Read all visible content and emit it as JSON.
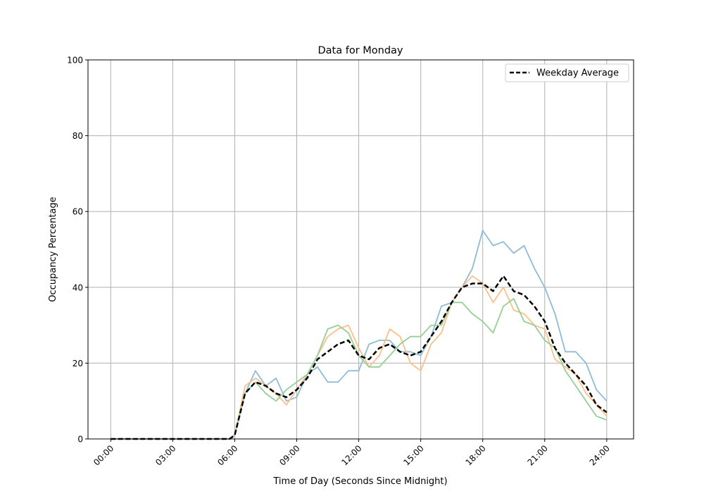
{
  "chart_data": {
    "type": "line",
    "title": "Data for Monday",
    "xlabel": "Time of Day (Seconds Since Midnight)",
    "ylabel": "Occupancy Percentage",
    "xlim": [
      -1.1,
      25.3
    ],
    "ylim": [
      0,
      100
    ],
    "grid": true,
    "legend_placement": "top-right",
    "x_ticks": [
      0,
      3,
      6,
      9,
      12,
      15,
      18,
      21,
      24
    ],
    "x_tick_labels": [
      "00:00",
      "03:00",
      "06:00",
      "09:00",
      "12:00",
      "15:00",
      "18:00",
      "21:00",
      "24:00"
    ],
    "y_ticks": [
      0,
      20,
      40,
      60,
      80,
      100
    ],
    "y_tick_labels": [
      "0",
      "20",
      "40",
      "60",
      "80",
      "100"
    ],
    "x_hours": [
      0,
      0.5,
      1,
      1.5,
      2,
      2.5,
      3,
      3.5,
      4,
      4.5,
      5,
      5.5,
      5.75,
      6,
      6.5,
      7,
      7.5,
      8,
      8.5,
      9,
      9.5,
      10,
      10.5,
      11,
      11.5,
      12,
      12.5,
      13,
      13.5,
      14,
      14.5,
      15,
      15.5,
      16,
      16.5,
      17,
      17.5,
      18,
      18.5,
      19,
      19.5,
      20,
      20.5,
      21,
      21.5,
      22,
      22.5,
      23,
      23.5,
      24
    ],
    "series": [
      {
        "color": "#8fbbd9",
        "style": "solid",
        "values": [
          0,
          0,
          0,
          0,
          0,
          0,
          0,
          0,
          0,
          0,
          0,
          0,
          0,
          1,
          12,
          18,
          14,
          16,
          10,
          11,
          17,
          19,
          15,
          15,
          18,
          18,
          25,
          26,
          26,
          23,
          23,
          22,
          27,
          35,
          36,
          40,
          45,
          55,
          51,
          52,
          49,
          51,
          45,
          40,
          33,
          23,
          23,
          20,
          13,
          10
        ]
      },
      {
        "color": "#ffbf86",
        "style": "solid",
        "values": [
          0,
          0,
          0,
          0,
          0,
          0,
          0,
          0,
          0,
          0,
          0,
          0,
          0,
          1,
          14,
          16,
          14,
          12,
          9,
          13,
          17,
          22,
          27,
          29,
          30,
          24,
          19,
          22,
          29,
          27,
          20,
          18,
          25,
          28,
          36,
          40,
          43,
          41,
          36,
          40,
          34,
          33,
          30,
          29,
          21,
          19,
          17,
          12,
          9,
          6
        ]
      },
      {
        "color": "#95cf95",
        "style": "solid",
        "values": [
          0,
          0,
          0,
          0,
          0,
          0,
          0,
          0,
          0,
          0,
          0,
          0,
          0,
          1,
          12,
          15,
          12,
          10,
          13,
          15,
          17,
          22,
          29,
          30,
          28,
          22,
          19,
          19,
          22,
          25,
          27,
          27,
          30,
          30,
          36,
          36,
          33,
          31,
          28,
          35,
          37,
          31,
          30,
          26,
          24,
          18,
          14,
          10,
          6,
          5
        ]
      },
      {
        "name": "Weekday Average",
        "color": "#000000",
        "style": "dashed",
        "values": [
          0,
          0,
          0,
          0,
          0,
          0,
          0,
          0,
          0,
          0,
          0,
          0,
          0,
          1,
          12,
          15,
          14,
          12,
          11,
          13,
          16,
          21,
          23,
          25,
          26,
          22,
          21,
          24,
          25,
          23,
          22,
          23,
          27,
          31,
          36,
          40,
          41,
          41,
          39,
          43,
          39,
          38,
          35,
          31,
          24,
          20,
          17,
          14,
          9,
          7
        ]
      }
    ]
  }
}
